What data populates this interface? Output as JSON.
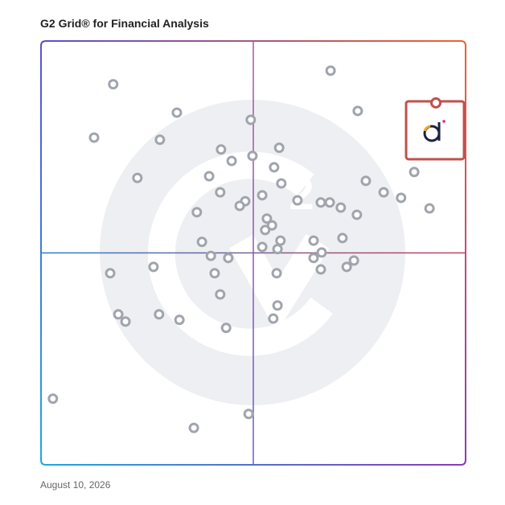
{
  "chart_data": {
    "type": "scatter",
    "title": "G2 Grid® for Financial Analysis",
    "date": "August 10, 2026",
    "xlim": [
      0,
      100
    ],
    "ylim": [
      0,
      100
    ],
    "x": [
      17.0,
      68.2,
      32.0,
      74.6,
      49.4,
      12.5,
      28.0,
      42.4,
      56.1,
      44.9,
      49.8,
      54.9,
      22.7,
      39.6,
      56.6,
      76.5,
      87.9,
      42.2,
      48.1,
      52.1,
      46.8,
      60.4,
      65.9,
      68.0,
      70.6,
      74.4,
      80.7,
      84.8,
      91.5,
      36.7,
      53.2,
      54.4,
      52.8,
      56.4,
      37.9,
      52.1,
      55.7,
      64.2,
      71.0,
      66.1,
      64.2,
      40.0,
      44.1,
      26.5,
      16.3,
      40.9,
      55.5,
      65.9,
      72.0,
      73.7,
      42.2,
      55.7,
      54.7,
      18.2,
      19.9,
      27.8,
      32.6,
      43.6,
      2.8,
      48.9,
      36.0
    ],
    "y": [
      89.8,
      93.0,
      83.1,
      83.5,
      81.4,
      77.2,
      76.7,
      74.4,
      74.8,
      71.7,
      72.9,
      70.2,
      67.7,
      68.1,
      66.4,
      67.0,
      69.1,
      64.3,
      62.2,
      63.6,
      61.1,
      62.4,
      61.9,
      61.9,
      60.7,
      59.0,
      64.3,
      63.0,
      60.5,
      59.6,
      58.1,
      56.5,
      55.4,
      52.9,
      52.6,
      51.4,
      50.9,
      52.9,
      53.5,
      50.1,
      48.8,
      49.3,
      48.8,
      46.7,
      45.2,
      45.2,
      45.2,
      46.1,
      46.7,
      48.2,
      40.2,
      37.6,
      34.5,
      35.5,
      33.8,
      35.5,
      34.2,
      32.3,
      15.6,
      12.0,
      8.7
    ],
    "color": "#a0a4ad",
    "highlight": {
      "x": 93.0,
      "y": 85.4,
      "color": "#c0504d"
    }
  }
}
